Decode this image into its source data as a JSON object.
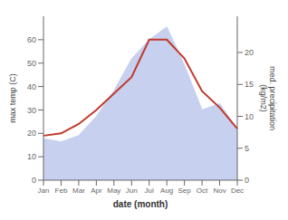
{
  "chart_data": {
    "type": "line",
    "categories": [
      "Jan",
      "Feb",
      "Mar",
      "Apr",
      "May",
      "Jun",
      "Jul",
      "Aug",
      "Sep",
      "Oct",
      "Nov",
      "Dec"
    ],
    "series": [
      {
        "type": "area",
        "color": "#c8d0f0",
        "axis": "y2",
        "values": [
          6.5,
          6,
          7,
          10,
          14,
          19,
          22,
          24,
          18,
          11,
          12,
          8
        ]
      },
      {
        "type": "line",
        "color": "#c0392b",
        "values": [
          19,
          20,
          24,
          30,
          37,
          44,
          60,
          60,
          52,
          38,
          31,
          22
        ]
      }
    ],
    "xlabel": "date (month)",
    "ylabel": "max temp (C)",
    "y2label": "med. precipitation\n(kg/m2)",
    "ylim": [
      0,
      70
    ],
    "yticks": [
      0,
      10,
      20,
      30,
      40,
      50,
      60
    ],
    "y2lim": [
      0,
      25.67
    ],
    "y2ticks": [
      0,
      5,
      10,
      15,
      20
    ],
    "grid": false
  }
}
